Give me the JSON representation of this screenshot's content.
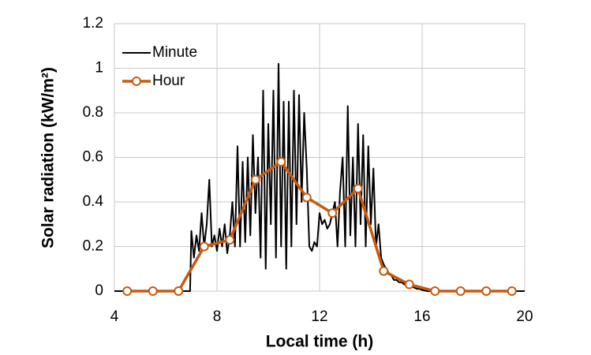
{
  "chart_data": {
    "type": "line",
    "xlabel": "Local time (h)",
    "ylabel": "Solar radiation (kW/m²)",
    "xlim": [
      4,
      20
    ],
    "xticks": [
      4,
      8,
      12,
      16,
      20
    ],
    "ylim": [
      0,
      1.2
    ],
    "yticks": [
      0,
      0.2,
      0.4,
      0.6,
      0.8,
      1,
      1.2
    ],
    "grid": true,
    "legend": "upper left",
    "series": [
      {
        "name": "Minute",
        "color": "#000000",
        "marker": false,
        "x": [
          4,
          6.95,
          7.0,
          7.1,
          7.2,
          7.3,
          7.4,
          7.5,
          7.6,
          7.7,
          7.8,
          7.9,
          8.0,
          8.1,
          8.2,
          8.3,
          8.4,
          8.5,
          8.6,
          8.7,
          8.8,
          8.9,
          9.0,
          9.1,
          9.2,
          9.3,
          9.4,
          9.5,
          9.6,
          9.7,
          9.8,
          9.9,
          10.0,
          10.1,
          10.2,
          10.3,
          10.4,
          10.5,
          10.6,
          10.7,
          10.8,
          10.9,
          11.0,
          11.1,
          11.2,
          11.3,
          11.4,
          11.5,
          11.6,
          11.7,
          11.8,
          11.9,
          12.0,
          12.1,
          12.2,
          12.3,
          12.4,
          12.5,
          12.6,
          12.7,
          12.8,
          12.9,
          13.0,
          13.1,
          13.2,
          13.3,
          13.4,
          13.5,
          13.6,
          13.7,
          13.8,
          13.9,
          14.0,
          14.1,
          14.2,
          14.3,
          14.4,
          14.5,
          14.6,
          14.7,
          14.8,
          14.9,
          15.0,
          15.1,
          15.2,
          15.3,
          15.4,
          15.5,
          15.6,
          15.7,
          15.8,
          15.9,
          16.0,
          16.2,
          20
        ],
        "values": [
          0,
          0,
          0.27,
          0.15,
          0.25,
          0.18,
          0.35,
          0.2,
          0.3,
          0.5,
          0.2,
          0.25,
          0.18,
          0.28,
          0.2,
          0.3,
          0.17,
          0.25,
          0.4,
          0.2,
          0.65,
          0.2,
          0.58,
          0.22,
          0.6,
          0.25,
          0.7,
          0.35,
          0.6,
          0.15,
          0.9,
          0.1,
          0.75,
          0.3,
          0.9,
          0.15,
          1.02,
          0.2,
          0.85,
          0.1,
          0.85,
          0.2,
          0.9,
          0.3,
          0.88,
          0.4,
          0.8,
          0.55,
          0.2,
          0.18,
          0.22,
          0.2,
          0.35,
          0.3,
          0.32,
          0.28,
          0.3,
          0.35,
          0.4,
          0.2,
          0.45,
          0.6,
          0.2,
          0.83,
          0.25,
          0.6,
          0.2,
          0.75,
          0.3,
          0.7,
          0.2,
          0.65,
          0.3,
          0.55,
          0.2,
          0.3,
          0.15,
          0.12,
          0.1,
          0.08,
          0.07,
          0.05,
          0.05,
          0.04,
          0.04,
          0.03,
          0.03,
          0.02,
          0.02,
          0.015,
          0.01,
          0.01,
          0.005,
          0,
          0
        ]
      },
      {
        "name": "Hour",
        "color": "#c55a11",
        "marker": true,
        "x": [
          4.5,
          5.5,
          6.5,
          7.5,
          8.5,
          9.5,
          10.5,
          11.5,
          12.5,
          13.5,
          14.5,
          15.5,
          16.5,
          17.5,
          18.5,
          19.5
        ],
        "values": [
          0,
          0,
          0,
          0.2,
          0.23,
          0.5,
          0.58,
          0.42,
          0.35,
          0.46,
          0.09,
          0.03,
          0,
          0,
          0,
          0
        ]
      }
    ]
  }
}
